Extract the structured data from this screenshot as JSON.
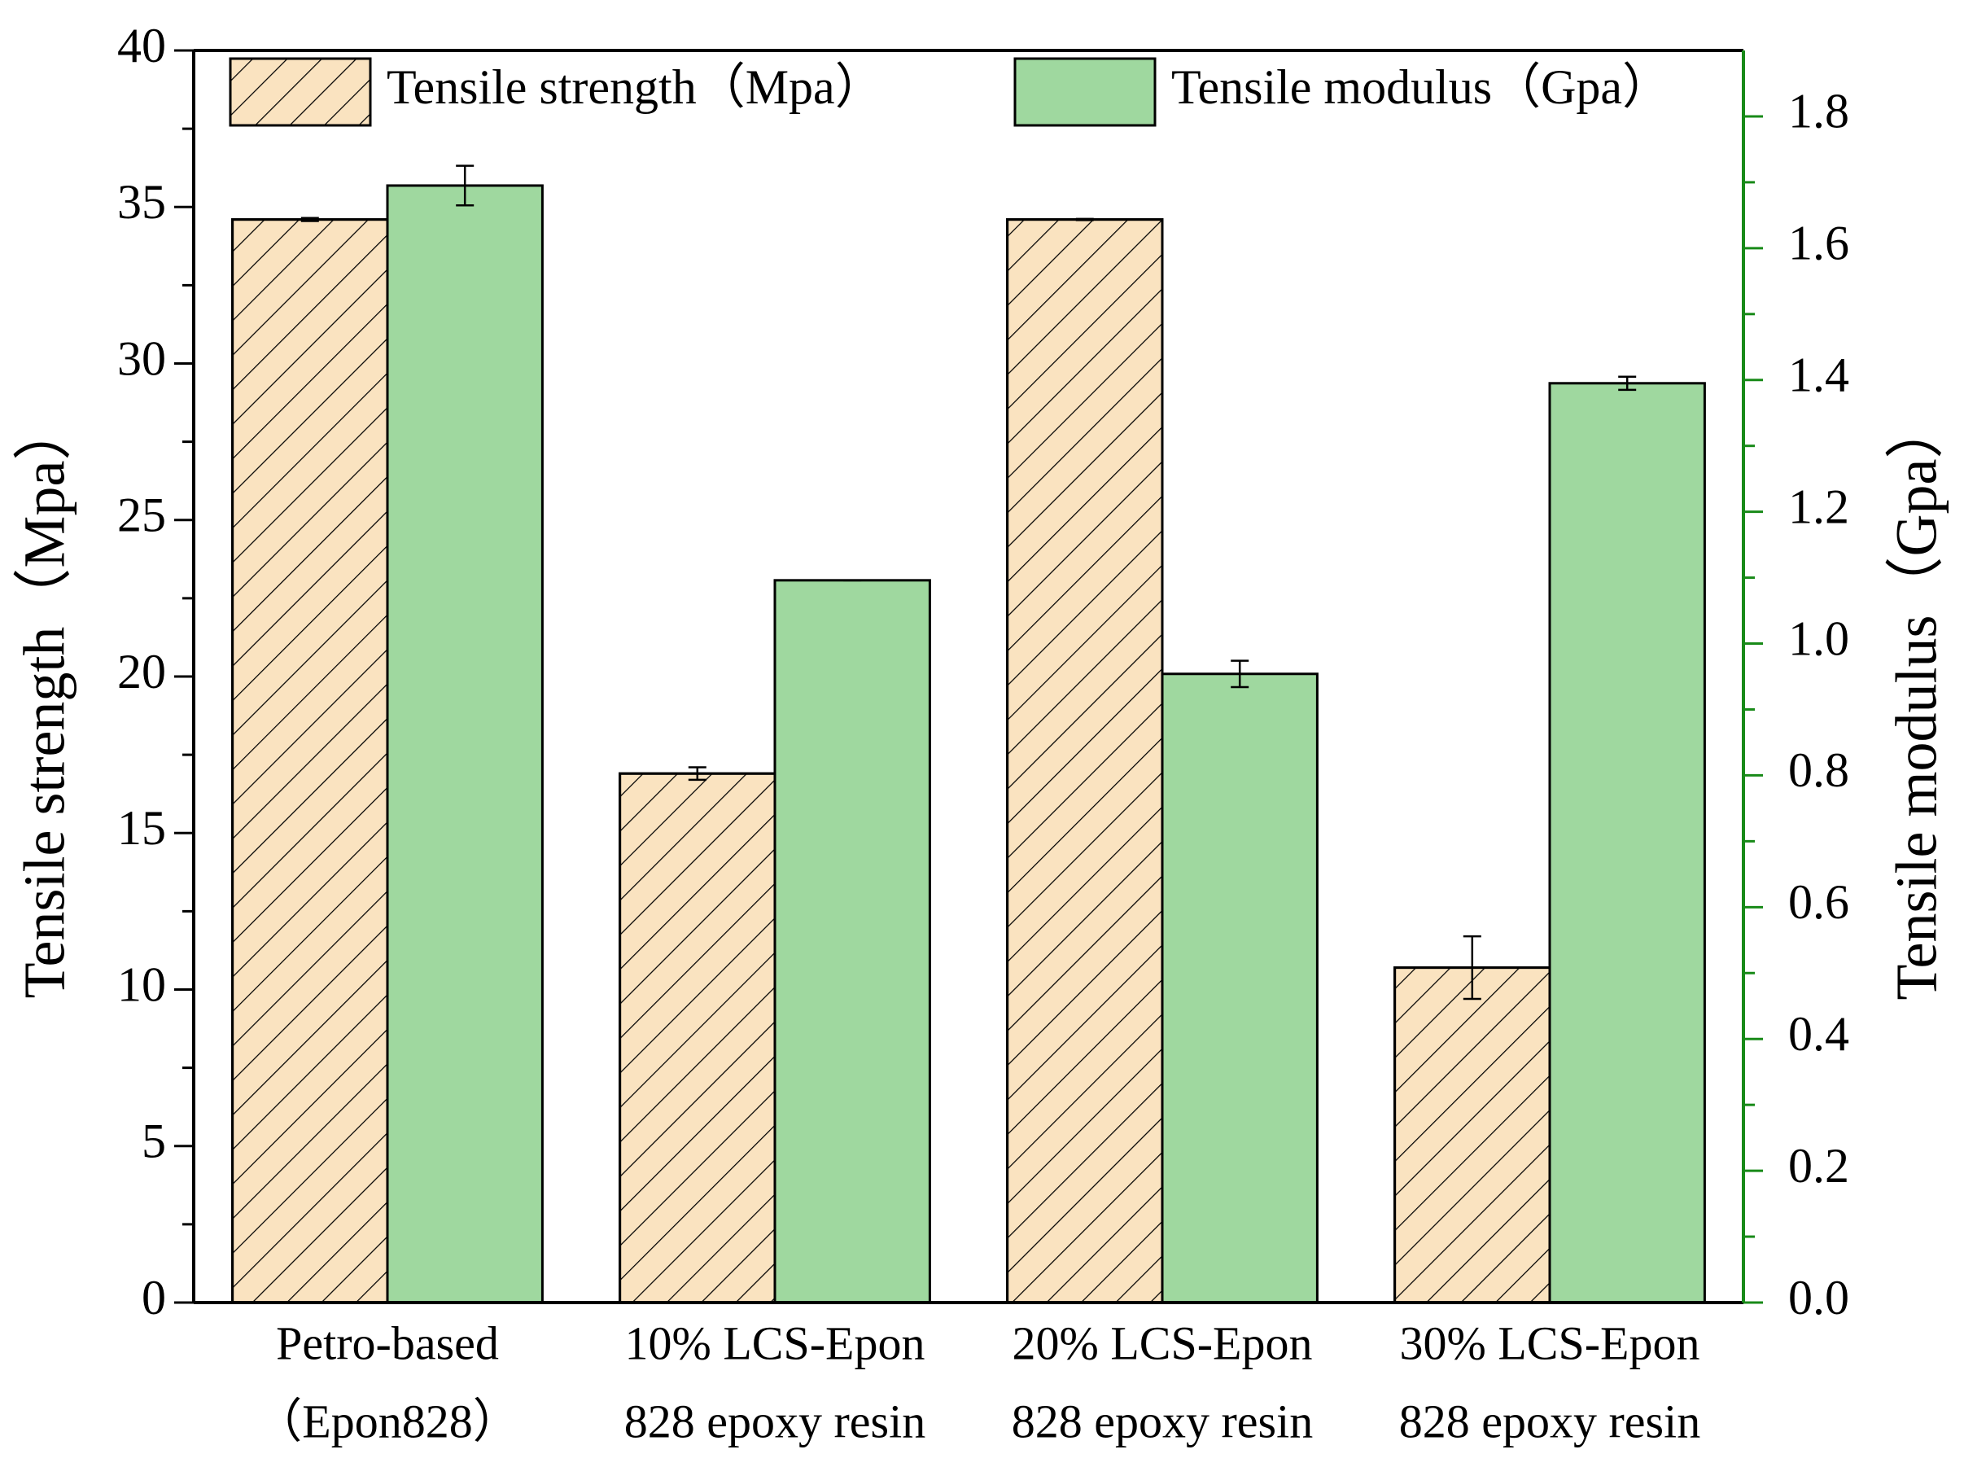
{
  "chart_data": {
    "type": "bar",
    "categories": [
      [
        "Petro-based",
        "（Epon828）"
      ],
      [
        "10% LCS-Epon",
        "828 epoxy resin"
      ],
      [
        "20% LCS-Epon",
        "828 epoxy resin"
      ],
      [
        "30% LCS-Epon",
        "828 epoxy resin"
      ]
    ],
    "series": [
      {
        "name": "Tensile strength（Mpa）",
        "color": "#fae3c0",
        "hatch": "//",
        "values": [
          34.6,
          16.9,
          34.6,
          10.7
        ],
        "errors": [
          0.05,
          0.2,
          0.02,
          1.0
        ]
      },
      {
        "name": "Tensile modulus（Gpa）",
        "color": "#9fd89f",
        "axis": "y2",
        "values": [
          1.695,
          1.096,
          0.954,
          1.395
        ],
        "errors": [
          0.03,
          0,
          0.02,
          0.01
        ]
      }
    ],
    "ylabel": "Tensile strength（Mpa）",
    "y2label": "Tensile modulus（Gpa）",
    "ylim": [
      0,
      40
    ],
    "yticks": [
      0,
      5,
      10,
      15,
      20,
      25,
      30,
      35,
      40
    ],
    "y2lim": [
      0,
      1.9
    ],
    "y2ticks": [
      {
        "value": 0,
        "label": "0.0"
      },
      0.2,
      0.4,
      0.6,
      0.8,
      {
        "value": 1,
        "label": "1.0"
      },
      1.2,
      1.4,
      1.6,
      1.8
    ],
    "y2color": "#188a18",
    "legend": "top"
  }
}
